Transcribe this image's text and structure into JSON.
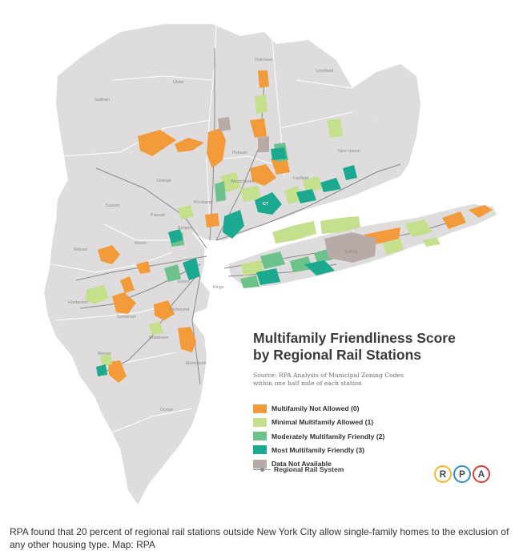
{
  "map": {
    "place_labels": [
      "Sullivan",
      "Ulster",
      "Dutchess",
      "Litchfield",
      "Orange",
      "Putnam",
      "New Haven",
      "Westchester",
      "Fairfield",
      "Sussex",
      "Passaic",
      "Rockland",
      "Bergen",
      "Warren",
      "Morris",
      "Essex",
      "Hunterdon",
      "Somerset",
      "Richmond",
      "Middlesex",
      "Monmouth",
      "Mercer",
      "Ocean",
      "Suffolk",
      "Kings",
      "CT"
    ]
  },
  "legend": {
    "title_line1": "Multifamily Friendliness Score",
    "title_line2": "by Regional Rail Stations",
    "source_line1": "Source: RPA Analysis of Municipal Zoning Codes",
    "source_line2": "within one half mile of each station",
    "items": [
      {
        "label": "Multifamily Not Allowed (0)",
        "color": "#f39b3b"
      },
      {
        "label": "Minimal Multifamily Allowed (1)",
        "color": "#c4e08c"
      },
      {
        "label": "Moderately Multifamily Friendly (2)",
        "color": "#6dc28b"
      },
      {
        "label": "Most Multifamily Friendly (3)",
        "color": "#1ba98f"
      },
      {
        "label": "Data Not Available",
        "color": "#b7aaa7"
      }
    ],
    "rail_label": "Regional Rail System"
  },
  "logo": {
    "letters": [
      "R",
      "P",
      "A"
    ],
    "ring_colors": [
      "#f6b824",
      "#2a8fca",
      "#e23b3b"
    ]
  },
  "caption": "RPA found that 20 percent of regional rail stations outside New York City allow single-family homes to the exclusion of any other housing type. Map: RPA",
  "colors": {
    "land": "#dedcdc",
    "county_line": "#ffffff",
    "water": "#ffffff"
  }
}
